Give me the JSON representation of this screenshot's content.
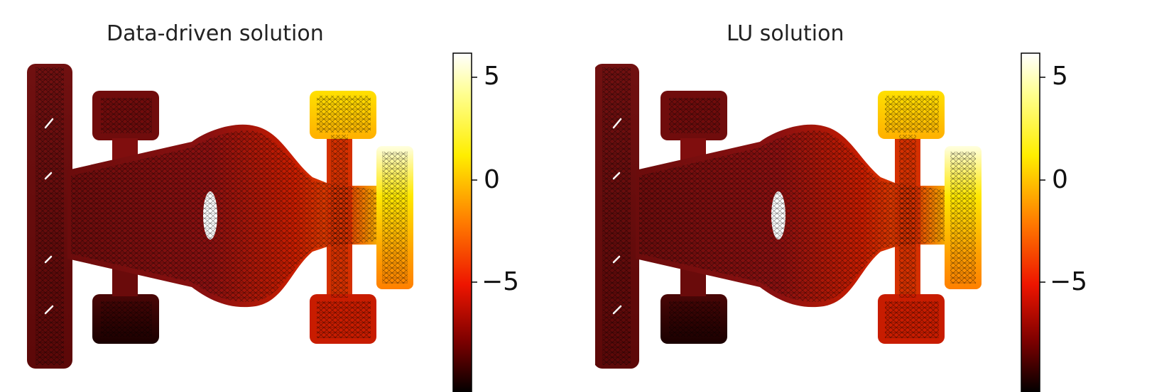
{
  "panels": [
    {
      "title": "Data-driven solution"
    },
    {
      "title": "LU solution"
    }
  ],
  "colorbar": {
    "colormap": "hot",
    "ticks": [
      "5",
      "0",
      "−5"
    ],
    "tick_values": [
      5,
      0,
      -5
    ],
    "range": [
      -9,
      6
    ]
  }
}
